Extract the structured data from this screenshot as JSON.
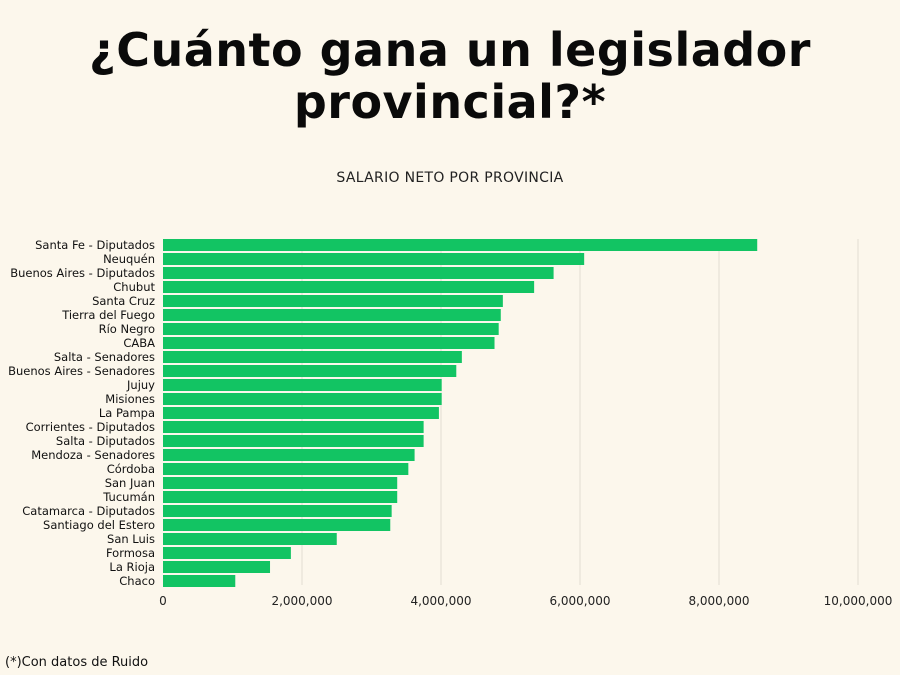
{
  "header": {
    "title_line1": "¿Cuánto gana un legislador",
    "title_line2": "provincial?*"
  },
  "footnote": "(*)Con datos de Ruido",
  "colors": {
    "bar": "#12c463",
    "grid": "#e2ddd2",
    "background": "#fcf7ec"
  },
  "chart_data": {
    "type": "bar",
    "orientation": "horizontal",
    "title": "SALARIO NETO POR PROVINCIA",
    "xlabel": "",
    "ylabel": "",
    "xlim": [
      0,
      10000000
    ],
    "xticks": [
      0,
      2000000,
      4000000,
      6000000,
      8000000,
      10000000
    ],
    "xtick_labels": [
      "0",
      "2,000,000",
      "4,000,000",
      "6,000,000",
      "8,000,000",
      "10,000,000"
    ],
    "grid": true,
    "legend": "none",
    "categories": [
      "Santa Fe - Diputados",
      "Neuquén",
      "Buenos Aires - Diputados",
      "Chubut",
      "Santa Cruz",
      "Tierra del Fuego",
      "Río Negro",
      "CABA",
      "Salta - Senadores",
      "Buenos Aires - Senadores",
      "Jujuy",
      "Misiones",
      "La Pampa",
      "Corrientes - Diputados",
      "Salta - Diputados",
      "Mendoza - Senadores",
      "Córdoba",
      "San Juan",
      "Tucumán",
      "Catamarca - Diputados",
      "Santiago del Estero",
      "San Luis",
      "Formosa",
      "La Rioja",
      "Chaco"
    ],
    "values": [
      8550000,
      6060000,
      5620000,
      5340000,
      4890000,
      4860000,
      4830000,
      4770000,
      4300000,
      4220000,
      4010000,
      4010000,
      3970000,
      3750000,
      3750000,
      3620000,
      3530000,
      3370000,
      3370000,
      3290000,
      3270000,
      2500000,
      1840000,
      1540000,
      1040000
    ]
  }
}
